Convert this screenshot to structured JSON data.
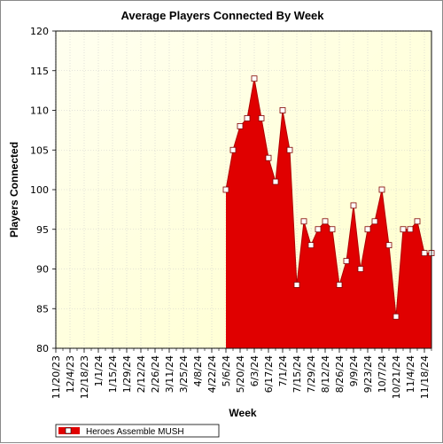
{
  "chart_data": {
    "type": "area",
    "title": "Average Players Connected By Week",
    "xlabel": "Week",
    "ylabel": "Players Connected",
    "ylim": [
      80,
      120
    ],
    "yticks": [
      80,
      85,
      90,
      95,
      100,
      105,
      110,
      115,
      120
    ],
    "xtick_labels": [
      "11/20/23",
      "12/4/23",
      "12/18/23",
      "1/1/24",
      "1/15/24",
      "1/29/24",
      "2/12/24",
      "2/26/24",
      "3/11/24",
      "3/25/24",
      "4/8/24",
      "4/22/24",
      "5/6/24",
      "5/20/24",
      "6/3/24",
      "6/17/24",
      "7/1/24",
      "7/15/24",
      "7/29/24",
      "8/12/24",
      "8/26/24",
      "9/9/24",
      "9/23/24",
      "10/7/24",
      "10/21/24",
      "11/4/24",
      "11/18/24"
    ],
    "x": [
      "11/20/23",
      "11/27/23",
      "12/4/23",
      "12/11/23",
      "12/18/23",
      "12/25/23",
      "1/1/24",
      "1/8/24",
      "1/15/24",
      "1/22/24",
      "1/29/24",
      "2/5/24",
      "2/12/24",
      "2/19/24",
      "2/26/24",
      "3/4/24",
      "3/11/24",
      "3/18/24",
      "3/25/24",
      "4/1/24",
      "4/8/24",
      "4/15/24",
      "4/22/24",
      "4/29/24",
      "5/6/24",
      "5/13/24",
      "5/20/24",
      "5/27/24",
      "6/3/24",
      "6/10/24",
      "6/17/24",
      "6/24/24",
      "7/1/24",
      "7/8/24",
      "7/15/24",
      "7/22/24",
      "7/29/24",
      "8/5/24",
      "8/12/24",
      "8/19/24",
      "8/26/24",
      "9/2/24",
      "9/9/24",
      "9/16/24",
      "9/23/24",
      "9/30/24",
      "10/7/24",
      "10/14/24",
      "10/21/24",
      "10/28/24",
      "11/4/24",
      "11/11/24",
      "11/18/24",
      "11/25/24"
    ],
    "series": [
      {
        "name": "Heroes Assemble MUSH",
        "color": "#e00000",
        "values": [
          null,
          null,
          null,
          null,
          null,
          null,
          null,
          null,
          null,
          null,
          null,
          null,
          null,
          null,
          null,
          null,
          null,
          null,
          null,
          null,
          null,
          null,
          null,
          null,
          100,
          105,
          108,
          109,
          114,
          109,
          104,
          101,
          110,
          105,
          88,
          96,
          93,
          95,
          96,
          95,
          88,
          91,
          98,
          90,
          95,
          96,
          100,
          93,
          84,
          95,
          95,
          96,
          92,
          92
        ]
      }
    ],
    "plot_background": "#ffffe0",
    "grid": true,
    "legend_position": "bottom-left"
  }
}
